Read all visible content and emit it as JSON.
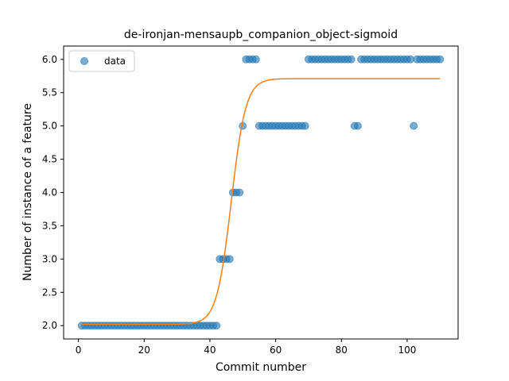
{
  "chart_data": {
    "type": "scatter",
    "title": "de-ironjan-mensaupb_companion_object-sigmoid",
    "xlabel": "Commit number",
    "ylabel": "Number of instance of a feature",
    "xlim": [
      -4.5,
      115.5
    ],
    "ylim": [
      1.8,
      6.2
    ],
    "xticks": [
      0,
      20,
      40,
      60,
      80,
      100
    ],
    "yticks": [
      2.0,
      2.5,
      3.0,
      3.5,
      4.0,
      4.5,
      5.0,
      5.5,
      6.0
    ],
    "xtick_labels": [
      "0",
      "20",
      "40",
      "60",
      "80",
      "100"
    ],
    "ytick_labels": [
      "2.0",
      "2.5",
      "3.0",
      "3.5",
      "4.0",
      "4.5",
      "5.0",
      "5.5",
      "6.0"
    ],
    "grid": false,
    "legend_position": "top-left",
    "series": [
      {
        "name": "data",
        "kind": "scatter",
        "color": "#1f77b4",
        "points": [
          [
            1,
            2
          ],
          [
            2,
            2
          ],
          [
            3,
            2
          ],
          [
            4,
            2
          ],
          [
            5,
            2
          ],
          [
            6,
            2
          ],
          [
            7,
            2
          ],
          [
            8,
            2
          ],
          [
            9,
            2
          ],
          [
            10,
            2
          ],
          [
            11,
            2
          ],
          [
            12,
            2
          ],
          [
            13,
            2
          ],
          [
            14,
            2
          ],
          [
            15,
            2
          ],
          [
            16,
            2
          ],
          [
            17,
            2
          ],
          [
            18,
            2
          ],
          [
            19,
            2
          ],
          [
            20,
            2
          ],
          [
            21,
            2
          ],
          [
            22,
            2
          ],
          [
            23,
            2
          ],
          [
            24,
            2
          ],
          [
            25,
            2
          ],
          [
            26,
            2
          ],
          [
            27,
            2
          ],
          [
            28,
            2
          ],
          [
            29,
            2
          ],
          [
            30,
            2
          ],
          [
            31,
            2
          ],
          [
            32,
            2
          ],
          [
            33,
            2
          ],
          [
            34,
            2
          ],
          [
            35,
            2
          ],
          [
            36,
            2
          ],
          [
            37,
            2
          ],
          [
            38,
            2
          ],
          [
            39,
            2
          ],
          [
            40,
            2
          ],
          [
            41,
            2
          ],
          [
            42,
            2
          ],
          [
            43,
            3
          ],
          [
            44,
            3
          ],
          [
            45,
            3
          ],
          [
            46,
            3
          ],
          [
            47,
            4
          ],
          [
            48,
            4
          ],
          [
            49,
            4
          ],
          [
            50,
            5
          ],
          [
            51,
            6
          ],
          [
            52,
            6
          ],
          [
            53,
            6
          ],
          [
            54,
            6
          ],
          [
            55,
            5
          ],
          [
            56,
            5
          ],
          [
            57,
            5
          ],
          [
            58,
            5
          ],
          [
            59,
            5
          ],
          [
            60,
            5
          ],
          [
            61,
            5
          ],
          [
            62,
            5
          ],
          [
            63,
            5
          ],
          [
            64,
            5
          ],
          [
            65,
            5
          ],
          [
            66,
            5
          ],
          [
            67,
            5
          ],
          [
            68,
            5
          ],
          [
            69,
            5
          ],
          [
            70,
            6
          ],
          [
            71,
            6
          ],
          [
            72,
            6
          ],
          [
            73,
            6
          ],
          [
            74,
            6
          ],
          [
            75,
            6
          ],
          [
            76,
            6
          ],
          [
            77,
            6
          ],
          [
            78,
            6
          ],
          [
            79,
            6
          ],
          [
            80,
            6
          ],
          [
            81,
            6
          ],
          [
            82,
            6
          ],
          [
            83,
            6
          ],
          [
            84,
            5
          ],
          [
            85,
            5
          ],
          [
            86,
            6
          ],
          [
            87,
            6
          ],
          [
            88,
            6
          ],
          [
            89,
            6
          ],
          [
            90,
            6
          ],
          [
            91,
            6
          ],
          [
            92,
            6
          ],
          [
            93,
            6
          ],
          [
            94,
            6
          ],
          [
            95,
            6
          ],
          [
            96,
            6
          ],
          [
            97,
            6
          ],
          [
            98,
            6
          ],
          [
            99,
            6
          ],
          [
            100,
            6
          ],
          [
            101,
            6
          ],
          [
            102,
            5
          ],
          [
            103,
            6
          ],
          [
            104,
            6
          ],
          [
            105,
            6
          ],
          [
            106,
            6
          ],
          [
            107,
            6
          ],
          [
            108,
            6
          ],
          [
            109,
            6
          ],
          [
            110,
            6
          ]
        ]
      },
      {
        "kind": "sigmoid-fit",
        "color": "#ff7f0e",
        "x_range": [
          1,
          110
        ],
        "lower": 2.02,
        "upper": 5.71,
        "midpoint": 46.5,
        "steepness": 0.45
      }
    ]
  }
}
